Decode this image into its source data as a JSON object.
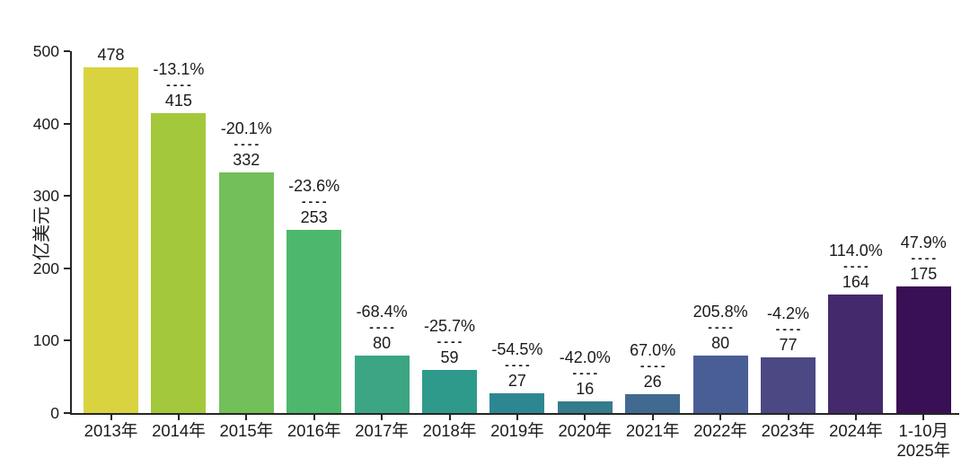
{
  "chart_data": {
    "type": "bar",
    "title": "",
    "xlabel": "",
    "ylabel": "亿美元",
    "ylim": [
      0,
      500
    ],
    "yticks": [
      0,
      100,
      200,
      300,
      400,
      500
    ],
    "grid": false,
    "legend": null,
    "categories": [
      "2013年",
      "2014年",
      "2015年",
      "2016年",
      "2017年",
      "2018年",
      "2019年",
      "2020年",
      "2021年",
      "2022年",
      "2023年",
      "2024年",
      "1-10月\n2025年"
    ],
    "values": [
      478,
      415,
      332,
      253,
      80,
      59,
      27,
      16,
      26,
      80,
      77,
      164,
      175
    ],
    "pct_change_labels": [
      "",
      "-13.1%",
      "-20.1%",
      "-23.6%",
      "-68.4%",
      "-25.7%",
      "-54.5%",
      "-42.0%",
      "67.0%",
      "205.8%",
      "-4.2%",
      "114.0%",
      "47.9%"
    ],
    "separator": "----",
    "bar_colors": [
      "#d8d33e",
      "#a4c83c",
      "#73bf5a",
      "#4db86d",
      "#3ca583",
      "#2e9a8c",
      "#2d8792",
      "#357b8c",
      "#416a90",
      "#4a5e96",
      "#4b4884",
      "#45296d",
      "#390f55"
    ],
    "axis_color": "#262626",
    "text_color": "#1a1a1a"
  }
}
